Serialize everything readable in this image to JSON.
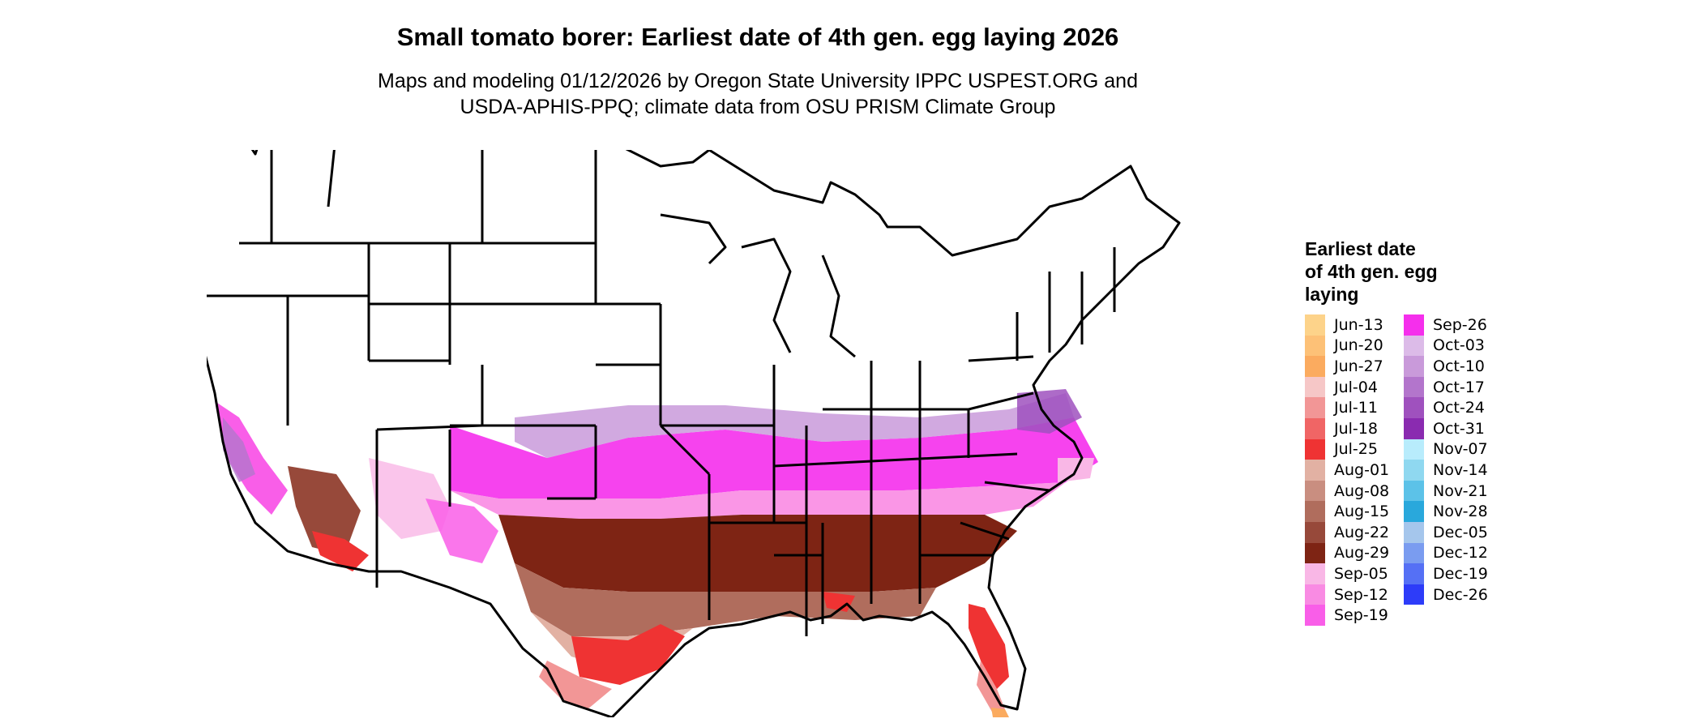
{
  "title": "Small tomato borer: Earliest date of 4th gen. egg laying 2026",
  "subtitle_line1": "Maps and modeling 01/12/2026 by Oregon State University IPPC USPEST.ORG and",
  "subtitle_line2": "USDA-APHIS-PPQ; climate data from OSU PRISM Climate Group",
  "legend": {
    "title_lines": [
      "Earliest date",
      "of 4th gen. egg",
      "laying"
    ],
    "items": [
      {
        "label": "Jun-13",
        "color": "#fdd38a"
      },
      {
        "label": "Jun-20",
        "color": "#fdc177"
      },
      {
        "label": "Jun-27",
        "color": "#fbab5f"
      },
      {
        "label": "Jul-04",
        "color": "#f6c7c7"
      },
      {
        "label": "Jul-11",
        "color": "#f29696"
      },
      {
        "label": "Jul-18",
        "color": "#f06565"
      },
      {
        "label": "Jul-25",
        "color": "#ef3333"
      },
      {
        "label": "Aug-01",
        "color": "#e2b1a3"
      },
      {
        "label": "Aug-08",
        "color": "#c98e80"
      },
      {
        "label": "Aug-15",
        "color": "#b06d5d"
      },
      {
        "label": "Aug-22",
        "color": "#97493a"
      },
      {
        "label": "Aug-29",
        "color": "#7e2414"
      },
      {
        "label": "Sep-05",
        "color": "#f9b7e6"
      },
      {
        "label": "Sep-12",
        "color": "#f98be3"
      },
      {
        "label": "Sep-19",
        "color": "#f95ee8"
      },
      {
        "label": "Sep-26",
        "color": "#f52fec"
      },
      {
        "label": "Oct-03",
        "color": "#dcbbe8"
      },
      {
        "label": "Oct-10",
        "color": "#c99ada"
      },
      {
        "label": "Oct-17",
        "color": "#b375cc"
      },
      {
        "label": "Oct-24",
        "color": "#9f51be"
      },
      {
        "label": "Oct-31",
        "color": "#8a2bb0"
      },
      {
        "label": "Nov-07",
        "color": "#b8ecfc"
      },
      {
        "label": "Nov-14",
        "color": "#8fd8f0"
      },
      {
        "label": "Nov-21",
        "color": "#5cc2e8"
      },
      {
        "label": "Nov-28",
        "color": "#29a8dc"
      },
      {
        "label": "Dec-05",
        "color": "#a5c6ec"
      },
      {
        "label": "Dec-12",
        "color": "#7a9cf0"
      },
      {
        "label": "Dec-19",
        "color": "#5570f5"
      },
      {
        "label": "Dec-26",
        "color": "#2d3cf9"
      }
    ]
  }
}
